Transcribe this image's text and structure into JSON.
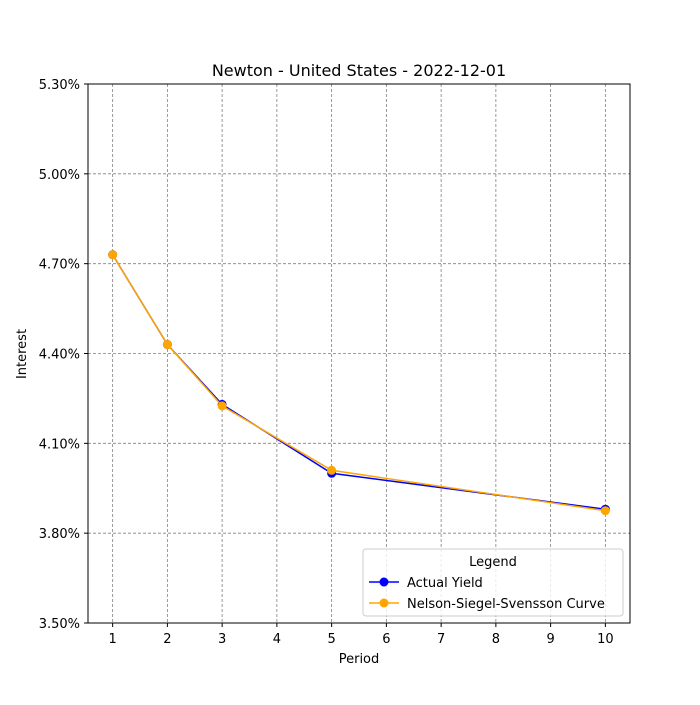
{
  "chart_data": {
    "type": "line",
    "title": "Newton - United States - 2022-12-01",
    "xlabel": "Period",
    "ylabel": "Interest",
    "x": [
      1,
      2,
      3,
      5,
      10
    ],
    "xticks": [
      1,
      2,
      3,
      4,
      5,
      6,
      7,
      8,
      9,
      10
    ],
    "xtick_labels": [
      "1",
      "2",
      "3",
      "4",
      "5",
      "6",
      "7",
      "8",
      "9",
      "10"
    ],
    "xlim": [
      0.55,
      10.45
    ],
    "ylim": [
      3.5,
      5.3
    ],
    "yticks": [
      3.5,
      3.8,
      4.1,
      4.4,
      4.7,
      5.0,
      5.3
    ],
    "ytick_labels": [
      "3.50%",
      "3.80%",
      "4.10%",
      "4.40%",
      "4.70%",
      "5.00%",
      "5.30%"
    ],
    "grid": true,
    "legend": {
      "title": "Legend",
      "placement": "lower-right"
    },
    "series": [
      {
        "name": "Actual Yield",
        "color": "#0000ff",
        "marker": "circle",
        "values": [
          4.73,
          4.43,
          4.23,
          4.0,
          3.88
        ]
      },
      {
        "name": "Nelson-Siegel-Svensson Curve",
        "color": "#ffa500",
        "marker": "circle",
        "values": [
          4.73,
          4.43,
          4.225,
          4.01,
          3.875
        ]
      }
    ]
  }
}
